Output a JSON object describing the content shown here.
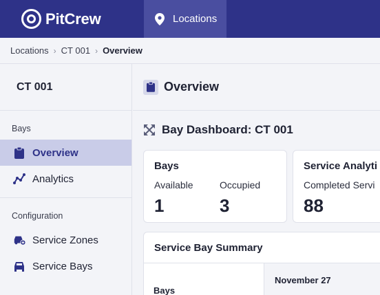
{
  "app": {
    "name": "PitCrew"
  },
  "nav": {
    "items": [
      {
        "label": "Locations",
        "icon": "map-pin-icon"
      }
    ]
  },
  "breadcrumb": {
    "items": [
      "Locations",
      "CT 001",
      "Overview"
    ]
  },
  "sidebar": {
    "title": "CT 001",
    "sections": [
      {
        "label": "Bays",
        "items": [
          {
            "label": "Overview",
            "icon": "clipboard-icon",
            "active": true
          },
          {
            "label": "Analytics",
            "icon": "line-chart-icon",
            "active": false
          }
        ]
      },
      {
        "label": "Configuration",
        "items": [
          {
            "label": "Service Zones",
            "icon": "car-zone-icon",
            "active": false
          },
          {
            "label": "Service Bays",
            "icon": "car-icon",
            "active": false
          }
        ]
      }
    ]
  },
  "main": {
    "header": "Overview",
    "dashboard_title": "Bay Dashboard: CT 001",
    "bays_card": {
      "title": "Bays",
      "available_label": "Available",
      "available_value": "1",
      "occupied_label": "Occupied",
      "occupied_value": "3"
    },
    "analytics_card": {
      "title": "Service Analyti",
      "completed_label": "Completed Servi",
      "completed_value": "88"
    },
    "summary": {
      "title": "Service Bay Summary",
      "bays_header": "Bays",
      "date_header": "November 27"
    }
  },
  "colors": {
    "nav_bg": "#2e3288",
    "nav_active": "#4a4ea0",
    "sidebar_active": "#c9cce8",
    "accent": "#2e3288"
  }
}
